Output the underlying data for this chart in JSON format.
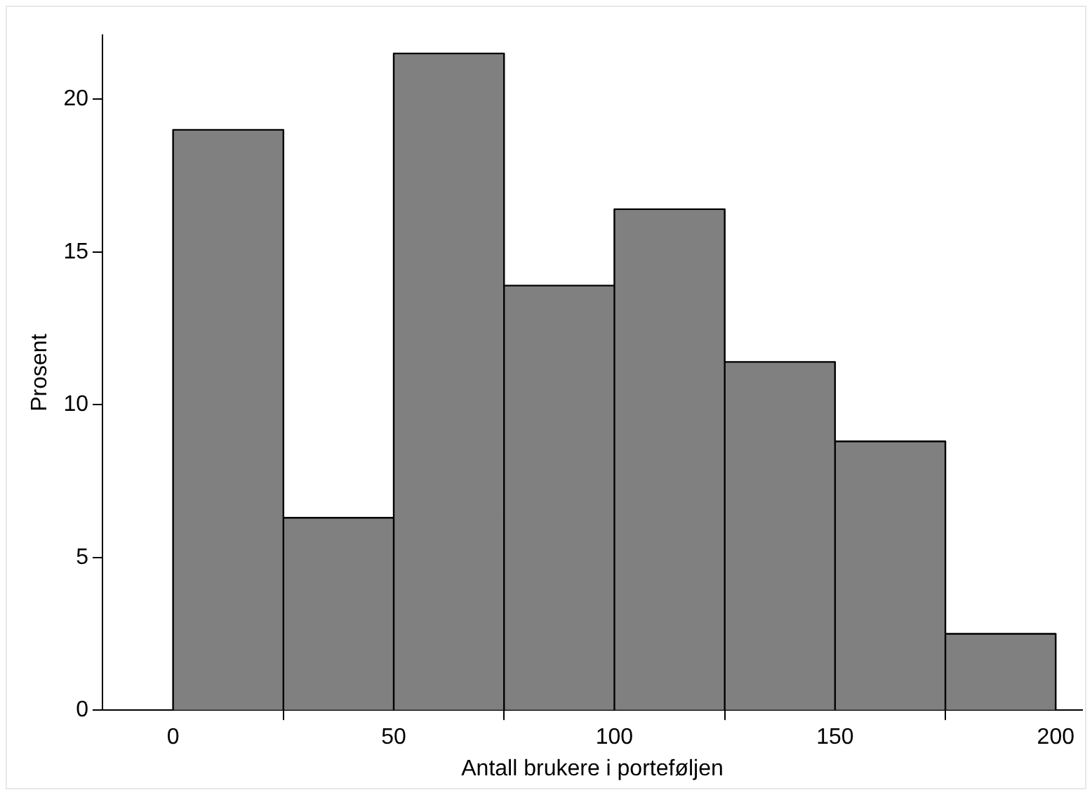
{
  "chart_data": {
    "type": "histogram",
    "xlabel": "Antall brukere i porteføljen",
    "ylabel": "Prosent",
    "bins": [
      0,
      25,
      50,
      75,
      100,
      125,
      150,
      175,
      200
    ],
    "values": [
      19.0,
      6.3,
      21.5,
      13.9,
      16.4,
      11.4,
      8.8,
      2.5
    ],
    "color": "#808080",
    "xlim": [
      -16,
      206
    ],
    "xticks": [
      0,
      50,
      100,
      150,
      200
    ],
    "ylim": [
      0,
      22.1
    ],
    "yticks": [
      0,
      5,
      10,
      15,
      20
    ]
  }
}
